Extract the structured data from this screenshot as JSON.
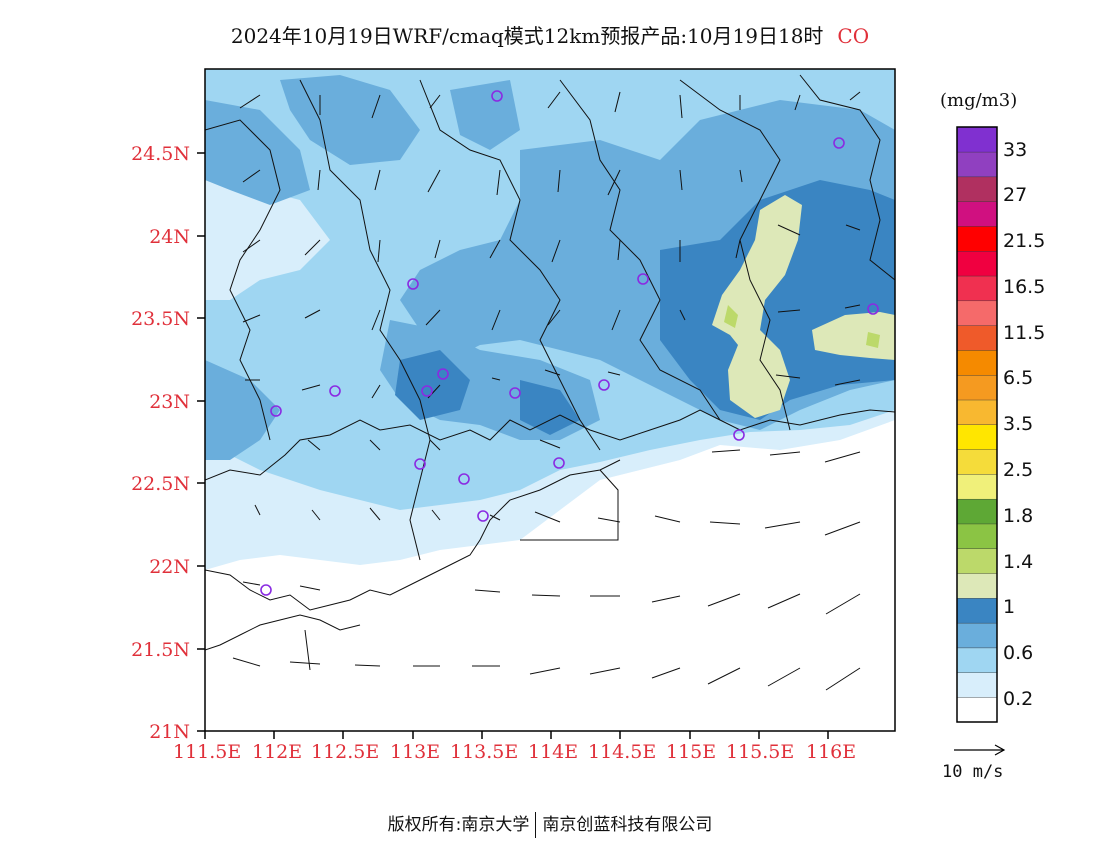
{
  "title": {
    "text": "2024年10月19日WRF/cmaq模式12km预报产品:10月19日18时",
    "species": "CO"
  },
  "axes": {
    "lat_labels": [
      "24.5N",
      "24N",
      "23.5N",
      "23N",
      "22.5N",
      "22N",
      "21.5N",
      "21N"
    ],
    "lon_labels": [
      "111.5E",
      "112E",
      "112.5E",
      "113E",
      "113.5E",
      "114E",
      "114.5E",
      "115E",
      "115.5E",
      "116E"
    ]
  },
  "legend": {
    "unit": "(mg/m3)",
    "labels": [
      "0.2",
      "0.6",
      "1",
      "1.4",
      "1.8",
      "2.5",
      "3.5",
      "6.5",
      "11.5",
      "16.5",
      "21.5",
      "27",
      "33"
    ],
    "colors_bottom_to_top": [
      "#ffffff",
      "#d8eefb",
      "#9fd6f2",
      "#6aaedc",
      "#3a85c2",
      "#dde8b8",
      "#bcd96a",
      "#8bc444",
      "#5ea835",
      "#f0f07a",
      "#f5dc3a",
      "#ffe600",
      "#f8b830",
      "#f59a20",
      "#f58a00",
      "#ef5a2a",
      "#f56a6a",
      "#f03050",
      "#f00040",
      "#ff0000",
      "#d01080",
      "#b03060",
      "#9040c0",
      "#8030d0"
    ]
  },
  "vector_ref": {
    "label": "10 m/s"
  },
  "footer": {
    "left": "版权所有:南京大学",
    "right": "南京创蓝科技有限公司"
  }
}
